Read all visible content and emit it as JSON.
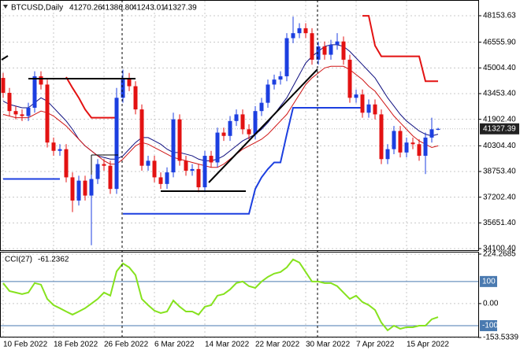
{
  "chart_data": [
    {
      "type": "candlestick",
      "title": "BTCUSD,Daily",
      "quote": [
        "41270.26",
        "41386.80",
        "41243.01",
        "41327.39"
      ],
      "categories": [
        "10 Feb 2022",
        null,
        null,
        null,
        null,
        null,
        null,
        null,
        "18 Feb 2022",
        null,
        null,
        null,
        null,
        null,
        null,
        null,
        "26 Feb 2022",
        null,
        null,
        null,
        null,
        null,
        null,
        null,
        "6 Mar 2022",
        null,
        null,
        null,
        null,
        null,
        null,
        null,
        "14 Mar 2022",
        null,
        null,
        null,
        null,
        null,
        null,
        null,
        "22 Mar 2022",
        null,
        null,
        null,
        null,
        null,
        null,
        null,
        "30 Mar 2022",
        null,
        null,
        null,
        null,
        null,
        null,
        null,
        "7 Apr 2022",
        null,
        null,
        null,
        null,
        null,
        null,
        null,
        "15 Apr 2022",
        null,
        null,
        null,
        null,
        null
      ],
      "open": [
        44400,
        43500,
        42400,
        42200,
        42100,
        42600,
        44500,
        44000,
        40500,
        40000,
        40100,
        38400,
        37000,
        38200,
        37300,
        38300,
        39200,
        39100,
        37700,
        43200,
        44400,
        43900,
        42500,
        39100,
        39400,
        38400,
        38000,
        38700,
        41900,
        39400,
        38800,
        38900,
        37800,
        39700,
        39300,
        41100,
        40900,
        41800,
        42200,
        41300,
        41000,
        42400,
        42900,
        44000,
        44300,
        44500,
        46800,
        47100,
        47400,
        47100,
        45500,
        46300,
        45800,
        46400,
        46600,
        45500,
        43200,
        43400,
        42300,
        42800,
        42200,
        39500,
        40100,
        41200,
        39900,
        40500,
        40400,
        39700,
        40800,
        41270.26
      ],
      "high": [
        44700,
        43800,
        42700,
        42500,
        42900,
        44800,
        44800,
        44300,
        40800,
        40400,
        40400,
        38700,
        38500,
        38500,
        38600,
        39500,
        39500,
        39400,
        43800,
        44900,
        44700,
        44200,
        42800,
        39700,
        39700,
        38700,
        39000,
        42300,
        42200,
        39700,
        39200,
        39200,
        40000,
        40000,
        41400,
        41400,
        42100,
        42500,
        42500,
        41600,
        42700,
        43200,
        44300,
        44600,
        44800,
        47100,
        48100,
        47700,
        47700,
        47400,
        46600,
        46600,
        46700,
        47100,
        46900,
        45800,
        43700,
        43700,
        43100,
        43100,
        42500,
        40400,
        41500,
        41500,
        40800,
        40800,
        40700,
        41100,
        42000,
        41386.8
      ],
      "low": [
        43200,
        42100,
        41900,
        41800,
        41800,
        42300,
        43700,
        40200,
        39700,
        39700,
        38100,
        36300,
        36700,
        37000,
        34300,
        38000,
        38800,
        37400,
        37400,
        42900,
        43600,
        42200,
        38800,
        38800,
        38100,
        37700,
        37700,
        38400,
        39100,
        38500,
        38500,
        37500,
        37500,
        39000,
        39000,
        40600,
        40600,
        41500,
        41000,
        40700,
        40700,
        42100,
        42600,
        43700,
        44000,
        44200,
        46500,
        46800,
        46800,
        45200,
        45200,
        45500,
        45500,
        46100,
        45200,
        42900,
        42900,
        42000,
        42000,
        41900,
        39200,
        39200,
        39800,
        39600,
        39600,
        40100,
        39400,
        38600,
        40500,
        41243.01
      ],
      "close": [
        43500,
        42400,
        42200,
        42100,
        42600,
        44500,
        44000,
        40500,
        40000,
        40100,
        38400,
        37000,
        38200,
        37300,
        38300,
        39200,
        39100,
        37700,
        43200,
        44400,
        43900,
        42500,
        39100,
        39400,
        38400,
        38000,
        38700,
        41900,
        39400,
        38800,
        38900,
        37800,
        39700,
        39300,
        41100,
        40900,
        41800,
        42200,
        41300,
        41000,
        42400,
        42900,
        44000,
        44300,
        44500,
        46800,
        47100,
        47400,
        47100,
        45500,
        46300,
        45800,
        46400,
        46600,
        45500,
        43200,
        43400,
        42300,
        42800,
        42200,
        39500,
        40100,
        41200,
        39900,
        40500,
        40400,
        39700,
        40800,
        41300,
        41327.39
      ],
      "up_color": "#1c3fe0",
      "down_color": "#e31212",
      "series": [
        {
          "color": "#101080",
          "width": 1,
          "values": [
            43000,
            42800,
            42700,
            42600,
            42600,
            42900,
            43200,
            43000,
            42600,
            42200,
            41800,
            41300,
            40700,
            40300,
            40000,
            39700,
            39600,
            39500,
            39500,
            39700,
            40100,
            40500,
            40800,
            40800,
            40600,
            40400,
            40100,
            39900,
            39900,
            39800,
            39700,
            39500,
            39400,
            39400,
            39500,
            39700,
            40000,
            40300,
            40600,
            40800,
            41000,
            41300,
            41700,
            42200,
            42700,
            43200,
            43900,
            44600,
            45300,
            45700,
            46000,
            46300,
            46400,
            46400,
            46300,
            46000,
            45600,
            45200,
            44800,
            44400,
            43800,
            43200,
            42700,
            42200,
            41800,
            41500,
            41200,
            41000,
            40900,
            41000
          ]
        },
        {
          "color": "#d01515",
          "width": 1,
          "values": [
            42200,
            42100,
            42000,
            42000,
            42000,
            42200,
            42400,
            42300,
            42100,
            41800,
            41500,
            41100,
            40700,
            40300,
            40000,
            39700,
            39400,
            39200,
            39200,
            39500,
            39900,
            40300,
            40500,
            40400,
            40200,
            40000,
            39800,
            39600,
            39500,
            39400,
            39300,
            39200,
            39100,
            39000,
            39000,
            39200,
            39500,
            39800,
            40100,
            40300,
            40500,
            40700,
            41000,
            41400,
            41800,
            42200,
            42800,
            43400,
            44000,
            44400,
            44700,
            45000,
            45100,
            45100,
            45100,
            44900,
            44600,
            44300,
            43900,
            43600,
            43100,
            42600,
            42100,
            41700,
            41300,
            40900,
            40600,
            40400,
            40200,
            40300
          ]
        },
        {
          "color": "#e31212",
          "width": 2,
          "values": [
            null,
            null,
            null,
            null,
            null,
            null,
            null,
            null,
            null,
            null,
            44450,
            43800,
            43200,
            42500,
            42000,
            42000,
            42000,
            42000,
            42000,
            null,
            null,
            null,
            null,
            null,
            null,
            null,
            null,
            null,
            null,
            null,
            null,
            null,
            null,
            null,
            null,
            null,
            null,
            null,
            null,
            null,
            null,
            null,
            null,
            null,
            null,
            null,
            null,
            null,
            null,
            null,
            null,
            null,
            null,
            null,
            null,
            null,
            null,
            48150,
            48150,
            46350,
            45700,
            45700,
            45700,
            45700,
            45700,
            45700,
            45700,
            44200,
            44200,
            44200
          ]
        },
        {
          "color": "#1c3fe0",
          "width": 2,
          "values": [
            38300,
            38300,
            38300,
            38300,
            38300,
            38300,
            38300,
            38300,
            38300,
            38300,
            null,
            null,
            null,
            null,
            null,
            null,
            null,
            null,
            null,
            36200,
            36200,
            36200,
            36200,
            36200,
            36200,
            36200,
            36200,
            36200,
            36200,
            36200,
            36200,
            36200,
            36200,
            36200,
            36200,
            36200,
            36200,
            36200,
            36200,
            36200,
            37700,
            38400,
            38900,
            39300,
            39300,
            41000,
            42600,
            42600,
            42600,
            42600,
            42600,
            42600,
            42600,
            42600,
            42600,
            42600,
            42600,
            42600,
            null,
            null,
            null,
            null,
            null,
            null,
            null,
            null,
            null,
            null,
            null,
            null
          ]
        }
      ],
      "ylim": [
        34005,
        48913
      ],
      "yticks": [
        48153.63,
        {
          "value": 46555.9,
          "label": "46555.90"
        },
        {
          "value": 45004.4,
          "label": "45004.40"
        },
        {
          "value": 43453.4,
          "label": "43453.40"
        },
        {
          "value": 41902.4,
          "label": "41902.40"
        },
        {
          "value": 40304.4,
          "label": "40304.40"
        },
        {
          "value": 38753.4,
          "label": "38753.40"
        },
        {
          "value": 37202.4,
          "label": "37202.40"
        },
        {
          "value": 35651.4,
          "label": "35651.40"
        },
        {
          "value": 34100.4,
          "label": "34100.40"
        }
      ],
      "grid": true
    },
    {
      "type": "line",
      "title": "CCI(27)",
      "color": "#86e21e",
      "values": [
        93,
        57,
        50,
        43,
        50,
        93,
        86,
        21,
        -7,
        -21,
        -36,
        -50,
        -36,
        -21,
        0,
        21,
        50,
        36,
        146,
        182,
        164,
        129,
        21,
        -7,
        -32,
        -43,
        -36,
        14,
        -14,
        -36,
        -36,
        -50,
        -14,
        -7,
        36,
        43,
        64,
        93,
        100,
        79,
        71,
        100,
        121,
        136,
        143,
        164,
        200,
        186,
        143,
        100,
        100,
        93,
        93,
        79,
        50,
        21,
        36,
        7,
        -7,
        -29,
        -86,
        -121,
        -100,
        -114,
        -107,
        -107,
        -100,
        -100,
        -71,
        -61.2362
      ],
      "ylim": [
        -153.5339,
        224.2685
      ],
      "yticks": [
        224.2685,
        {
          "value": 0,
          "label": "0.00"
        },
        -153.5339
      ],
      "levels": [
        100,
        -100
      ],
      "level_color": "#4a7ab0"
    }
  ]
}
